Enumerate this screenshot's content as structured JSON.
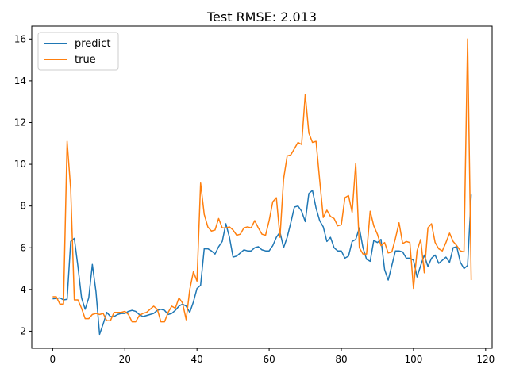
{
  "chart_data": {
    "type": "line",
    "title": "Test RMSE: 2.013",
    "xlabel": "",
    "ylabel": "",
    "xlim": [
      -5.8,
      121.8
    ],
    "ylim": [
      1.18,
      16.62
    ],
    "xticks": [
      0,
      20,
      40,
      60,
      80,
      100,
      120
    ],
    "yticks": [
      2,
      4,
      6,
      8,
      10,
      12,
      14,
      16
    ],
    "grid": false,
    "legend_position": "upper-left",
    "x": [
      0,
      1,
      2,
      3,
      4,
      5,
      6,
      7,
      8,
      9,
      10,
      11,
      12,
      13,
      14,
      15,
      16,
      17,
      18,
      19,
      20,
      21,
      22,
      23,
      24,
      25,
      26,
      27,
      28,
      29,
      30,
      31,
      32,
      33,
      34,
      35,
      36,
      37,
      38,
      39,
      40,
      41,
      42,
      43,
      44,
      45,
      46,
      47,
      48,
      49,
      50,
      51,
      52,
      53,
      54,
      55,
      56,
      57,
      58,
      59,
      60,
      61,
      62,
      63,
      64,
      65,
      66,
      67,
      68,
      69,
      70,
      71,
      72,
      73,
      74,
      75,
      76,
      77,
      78,
      79,
      80,
      81,
      82,
      83,
      84,
      85,
      86,
      87,
      88,
      89,
      90,
      91,
      92,
      93,
      94,
      95,
      96,
      97,
      98,
      99,
      100,
      101,
      102,
      103,
      104,
      105,
      106,
      107,
      108,
      109,
      110,
      111,
      112,
      113,
      114,
      115,
      116
    ],
    "series": [
      {
        "name": "predict",
        "color": "#1f77b4",
        "values": [
          3.55,
          3.57,
          3.6,
          3.5,
          3.53,
          6.3,
          6.45,
          5.1,
          3.6,
          3.05,
          3.6,
          5.2,
          3.9,
          1.85,
          2.35,
          2.9,
          2.7,
          2.7,
          2.8,
          2.85,
          2.85,
          2.95,
          3.0,
          2.95,
          2.8,
          2.7,
          2.75,
          2.8,
          2.85,
          3.0,
          3.05,
          3.0,
          2.8,
          2.85,
          3.0,
          3.2,
          3.3,
          3.2,
          2.9,
          3.4,
          4.05,
          4.2,
          5.95,
          5.95,
          5.85,
          5.7,
          6.05,
          6.3,
          7.15,
          6.5,
          5.55,
          5.6,
          5.75,
          5.9,
          5.85,
          5.85,
          6.0,
          6.05,
          5.9,
          5.85,
          5.85,
          6.1,
          6.5,
          6.75,
          6.0,
          6.5,
          7.2,
          7.95,
          8.0,
          7.75,
          7.25,
          8.6,
          8.75,
          7.9,
          7.3,
          7.0,
          6.3,
          6.5,
          6.0,
          5.85,
          5.85,
          5.5,
          5.6,
          6.3,
          6.4,
          6.95,
          6.0,
          5.45,
          5.35,
          6.35,
          6.25,
          6.4,
          4.95,
          4.45,
          5.15,
          5.85,
          5.85,
          5.8,
          5.5,
          5.5,
          5.4,
          4.6,
          5.15,
          5.65,
          5.1,
          5.5,
          5.65,
          5.25,
          5.4,
          5.55,
          5.3,
          6.0,
          6.05,
          5.3,
          5.0,
          5.15,
          8.55
        ]
      },
      {
        "name": "true",
        "color": "#ff7f0e",
        "values": [
          3.65,
          3.65,
          3.3,
          3.3,
          11.1,
          8.8,
          3.5,
          3.5,
          3.1,
          2.6,
          2.6,
          2.8,
          2.85,
          2.8,
          2.85,
          2.5,
          2.5,
          2.9,
          2.9,
          2.9,
          2.95,
          2.8,
          2.45,
          2.45,
          2.75,
          2.85,
          2.9,
          3.05,
          3.2,
          3.05,
          2.45,
          2.45,
          2.9,
          3.2,
          3.1,
          3.6,
          3.35,
          2.55,
          4.0,
          4.85,
          4.4,
          9.1,
          7.6,
          7.0,
          6.8,
          6.85,
          7.4,
          6.95,
          6.95,
          7.0,
          6.85,
          6.6,
          6.65,
          6.95,
          7.0,
          6.95,
          7.3,
          6.95,
          6.65,
          6.6,
          7.3,
          8.2,
          8.4,
          6.5,
          9.3,
          10.4,
          10.45,
          10.75,
          11.05,
          10.95,
          13.35,
          11.5,
          11.05,
          11.1,
          9.25,
          7.45,
          7.8,
          7.5,
          7.4,
          7.05,
          7.1,
          8.4,
          8.5,
          7.7,
          10.05,
          6.0,
          5.7,
          5.7,
          7.75,
          7.05,
          6.65,
          6.1,
          6.25,
          5.75,
          5.8,
          6.45,
          7.2,
          6.2,
          6.3,
          6.25,
          4.05,
          5.85,
          6.4,
          4.8,
          6.95,
          7.15,
          6.25,
          5.95,
          5.85,
          6.25,
          6.7,
          6.3,
          6.1,
          5.85,
          5.8,
          16.0,
          4.45
        ]
      }
    ]
  }
}
